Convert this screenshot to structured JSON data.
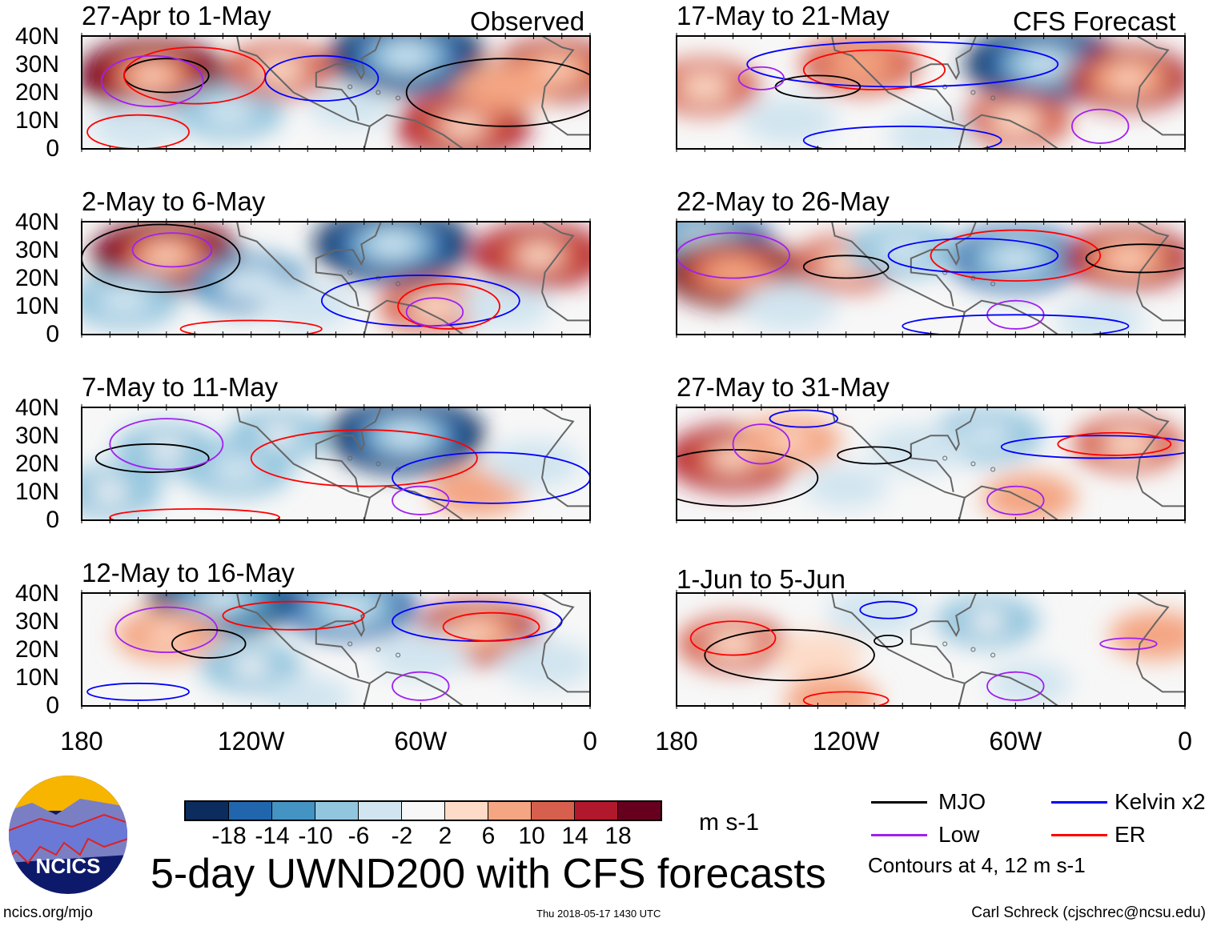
{
  "chart_data": {
    "type": "heatmap",
    "title": "5-day UWND200 with CFS forecasts",
    "units": "m s-1",
    "x_ticks": [
      "180",
      "120W",
      "60W",
      "0"
    ],
    "y_ticks": [
      "40N",
      "30N",
      "20N",
      "10N",
      "0"
    ],
    "colorbar": {
      "labels": [
        "-18",
        "-14",
        "-10",
        "-6",
        "-2",
        "2",
        "6",
        "10",
        "14",
        "18"
      ],
      "colors": [
        "#0b2c5c",
        "#2166ac",
        "#4393c3",
        "#92c5de",
        "#d1e5f0",
        "#f7f7f7",
        "#fddbc7",
        "#f4a582",
        "#d6604d",
        "#b2182b",
        "#67001f"
      ]
    },
    "columns": [
      {
        "tag": "Observed"
      },
      {
        "tag": "CFS Forecast"
      }
    ],
    "panels": [
      {
        "title": "27-Apr to 1-May",
        "col": 0,
        "row": 0,
        "blobs": [
          [
            155,
            26,
            20
          ],
          [
            128,
            13,
            -10
          ],
          [
            65,
            33,
            -22
          ],
          [
            45,
            8,
            16
          ],
          [
            12,
            28,
            14
          ],
          [
            110,
            28,
            10
          ],
          [
            160,
            8,
            -6
          ],
          [
            85,
            15,
            -3
          ],
          [
            30,
            22,
            6
          ]
        ],
        "contours": [
          [
            "mjo",
            150,
            26,
            15,
            6
          ],
          [
            "er",
            140,
            26,
            25,
            10
          ],
          [
            "kelvin",
            95,
            25,
            20,
            8
          ],
          [
            "low",
            155,
            24,
            18,
            9
          ],
          [
            "er",
            160,
            6,
            18,
            6
          ],
          [
            "mjo",
            30,
            20,
            35,
            12
          ]
        ]
      },
      {
        "title": "2-May to 6-May",
        "col": 0,
        "row": 0,
        "blobs": [
          [
            150,
            28,
            20
          ],
          [
            120,
            18,
            -12
          ],
          [
            165,
            12,
            -10
          ],
          [
            70,
            32,
            -22
          ],
          [
            18,
            28,
            16
          ],
          [
            55,
            10,
            10
          ],
          [
            100,
            10,
            -6
          ],
          [
            30,
            10,
            -5
          ]
        ],
        "contours": [
          [
            "mjo",
            152,
            27,
            28,
            12
          ],
          [
            "low",
            148,
            30,
            14,
            6
          ],
          [
            "kelvin",
            60,
            12,
            35,
            9
          ],
          [
            "er",
            50,
            10,
            18,
            8
          ],
          [
            "low",
            55,
            8,
            10,
            5
          ],
          [
            "er",
            120,
            2,
            25,
            3
          ]
        ]
      },
      {
        "title": "7-May to 11-May",
        "col": 0,
        "row": 0,
        "blobs": [
          [
            65,
            30,
            -22
          ],
          [
            150,
            25,
            -8
          ],
          [
            125,
            18,
            -10
          ],
          [
            170,
            10,
            -8
          ],
          [
            110,
            30,
            -8
          ],
          [
            40,
            10,
            6
          ],
          [
            20,
            20,
            -6
          ]
        ],
        "contours": [
          [
            "mjo",
            155,
            22,
            20,
            5
          ],
          [
            "low",
            150,
            27,
            20,
            9
          ],
          [
            "er",
            80,
            22,
            40,
            10
          ],
          [
            "kelvin",
            35,
            15,
            35,
            9
          ],
          [
            "low",
            60,
            7,
            10,
            5
          ],
          [
            "er",
            140,
            1,
            30,
            3
          ]
        ]
      },
      {
        "title": "12-May to 16-May",
        "col": 0,
        "row": 0,
        "blobs": [
          [
            130,
            38,
            -20
          ],
          [
            150,
            25,
            8
          ],
          [
            85,
            35,
            -16
          ],
          [
            40,
            26,
            14
          ],
          [
            120,
            14,
            -8
          ],
          [
            60,
            18,
            -6
          ],
          [
            15,
            15,
            -6
          ],
          [
            100,
            3,
            -4
          ]
        ],
        "contours": [
          [
            "low",
            150,
            27,
            18,
            8
          ],
          [
            "mjo",
            135,
            22,
            13,
            5
          ],
          [
            "er",
            105,
            32,
            25,
            5
          ],
          [
            "kelvin",
            40,
            30,
            30,
            7
          ],
          [
            "er",
            35,
            28,
            17,
            5
          ],
          [
            "low",
            60,
            7,
            10,
            5
          ],
          [
            "kelvin",
            160,
            5,
            18,
            3
          ]
        ]
      },
      {
        "title": "17-May to 21-May",
        "col": 1,
        "row": 0,
        "blobs": [
          [
            50,
            30,
            -22
          ],
          [
            115,
            30,
            12
          ],
          [
            20,
            25,
            14
          ],
          [
            170,
            22,
            10
          ],
          [
            60,
            10,
            10
          ],
          [
            140,
            10,
            -6
          ],
          [
            90,
            5,
            -4
          ]
        ],
        "contours": [
          [
            "er",
            110,
            28,
            25,
            7
          ],
          [
            "kelvin",
            100,
            30,
            55,
            8
          ],
          [
            "mjo",
            130,
            22,
            15,
            4
          ],
          [
            "low",
            30,
            8,
            10,
            6
          ],
          [
            "kelvin",
            100,
            3,
            35,
            5
          ],
          [
            "low",
            150,
            25,
            8,
            4
          ]
        ]
      },
      {
        "title": "22-May to 26-May",
        "col": 1,
        "row": 0,
        "blobs": [
          [
            170,
            33,
            -16
          ],
          [
            160,
            22,
            18
          ],
          [
            120,
            25,
            10
          ],
          [
            60,
            27,
            -16
          ],
          [
            100,
            30,
            -10
          ],
          [
            20,
            27,
            14
          ],
          [
            140,
            10,
            -6
          ],
          [
            30,
            5,
            -4
          ]
        ],
        "contours": [
          [
            "mjo",
            120,
            24,
            15,
            4
          ],
          [
            "er",
            60,
            28,
            30,
            9
          ],
          [
            "kelvin",
            75,
            28,
            30,
            6
          ],
          [
            "mjo",
            15,
            27,
            20,
            5
          ],
          [
            "low",
            160,
            28,
            20,
            8
          ],
          [
            "low",
            60,
            7,
            10,
            5
          ],
          [
            "kelvin",
            60,
            3,
            40,
            4
          ]
        ]
      },
      {
        "title": "27-May to 31-May",
        "col": 1,
        "row": 0,
        "blobs": [
          [
            160,
            22,
            16
          ],
          [
            140,
            28,
            8
          ],
          [
            70,
            30,
            -10
          ],
          [
            20,
            27,
            10
          ],
          [
            95,
            25,
            -6
          ],
          [
            55,
            8,
            6
          ],
          [
            120,
            12,
            -3
          ]
        ],
        "contours": [
          [
            "mjo",
            160,
            15,
            30,
            10
          ],
          [
            "low",
            150,
            27,
            10,
            7
          ],
          [
            "mjo",
            110,
            23,
            13,
            3
          ],
          [
            "kelvin",
            30,
            26,
            35,
            4
          ],
          [
            "er",
            25,
            27,
            20,
            4
          ],
          [
            "low",
            60,
            7,
            10,
            5
          ],
          [
            "kelvin",
            135,
            36,
            12,
            3
          ]
        ]
      },
      {
        "title": "1-Jun to 5-Jun",
        "col": 1,
        "row": 0,
        "blobs": [
          [
            160,
            22,
            10
          ],
          [
            130,
            18,
            5
          ],
          [
            70,
            30,
            -8
          ],
          [
            110,
            33,
            -6
          ],
          [
            10,
            25,
            6
          ],
          [
            55,
            8,
            -3
          ],
          [
            125,
            2,
            6
          ]
        ],
        "contours": [
          [
            "mjo",
            140,
            18,
            30,
            9
          ],
          [
            "er",
            160,
            24,
            15,
            6
          ],
          [
            "kelvin",
            105,
            34,
            10,
            3
          ],
          [
            "mjo",
            105,
            23,
            5,
            2
          ],
          [
            "low",
            60,
            7,
            10,
            5
          ],
          [
            "er",
            120,
            2,
            15,
            3
          ],
          [
            "low",
            20,
            22,
            10,
            2
          ]
        ]
      }
    ],
    "legend": [
      {
        "name": "MJO",
        "color": "#000000"
      },
      {
        "name": "Kelvin x2",
        "color": "#0000ff"
      },
      {
        "name": "Low",
        "color": "#a020f0"
      },
      {
        "name": "ER",
        "color": "#ff0000"
      }
    ],
    "contour_note": "Contours at 4, 12 m s-1"
  },
  "logo": {
    "text": "NCICS"
  },
  "footer": {
    "url": "ncics.org/mjo",
    "timestamp": "Thu 2018-05-17 1430 UTC",
    "author": "Carl Schreck (cjschrec@ncsu.edu)"
  }
}
